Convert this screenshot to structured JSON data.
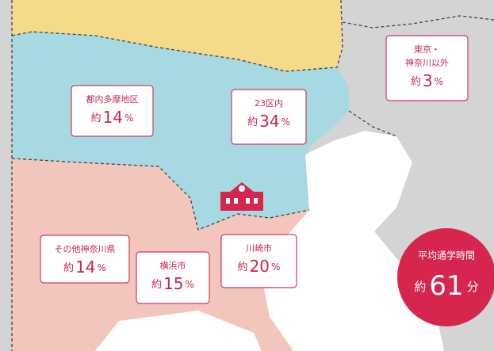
{
  "regions": [
    {
      "name": [
        "都内多摩地区"
      ],
      "prefix": "約",
      "value": 14,
      "unit": "%"
    },
    {
      "name": [
        "23区内"
      ],
      "prefix": "約",
      "value": 34,
      "unit": "%"
    },
    {
      "name": [
        "東京・",
        "神奈川以外"
      ],
      "prefix": "約",
      "value": 3,
      "unit": "%"
    },
    {
      "name": [
        "その他神奈川県"
      ],
      "prefix": "約",
      "value": 14,
      "unit": "%"
    },
    {
      "name": [
        "横浜市"
      ],
      "prefix": "約",
      "value": 15,
      "unit": "%"
    },
    {
      "name": [
        "川崎市"
      ],
      "prefix": "約",
      "value": 20,
      "unit": "%"
    }
  ],
  "commute": {
    "title": "平均通学時間",
    "prefix": "約",
    "value": 61,
    "unit": "分"
  }
}
